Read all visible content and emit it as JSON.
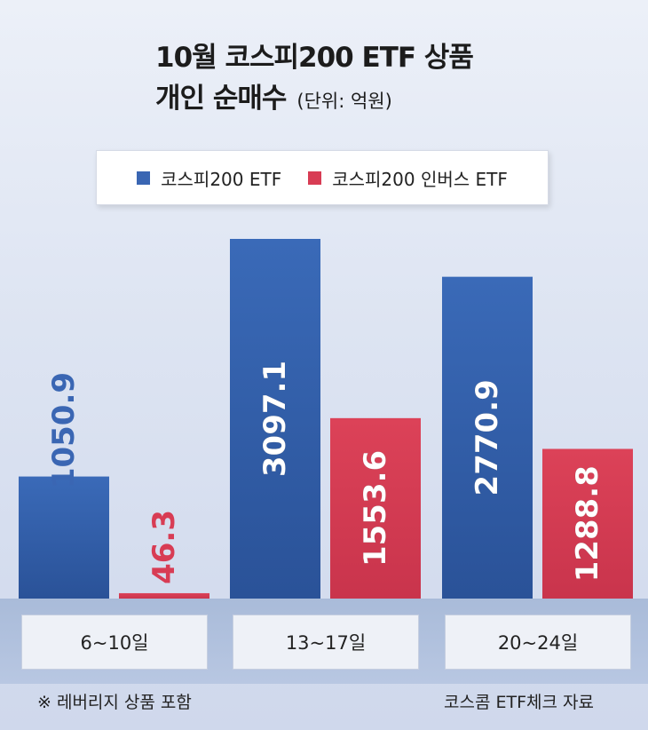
{
  "title_line1": "10월 코스피200 ETF 상품",
  "title_line2": "개인 순매수",
  "unit": "(단위: 억원)",
  "footnote": "※ 레버리지 상품 포함",
  "source": "코스콤 ETF체크 자료",
  "chart_data": {
    "type": "bar",
    "title": "10월 코스피200 ETF 상품 개인 순매수",
    "unit": "억원",
    "categories": [
      "6~10일",
      "13~17일",
      "20~24일"
    ],
    "series": [
      {
        "name": "코스피200 ETF",
        "color": "#3a66b3",
        "values": [
          1050.9,
          3097.1,
          2770.9
        ]
      },
      {
        "name": "코스피200 인버스 ETF",
        "color": "#d83c54",
        "values": [
          46.3,
          1553.6,
          1288.8
        ]
      }
    ],
    "ylim": [
      0,
      3300
    ],
    "legend_position": "top",
    "grid": false
  }
}
